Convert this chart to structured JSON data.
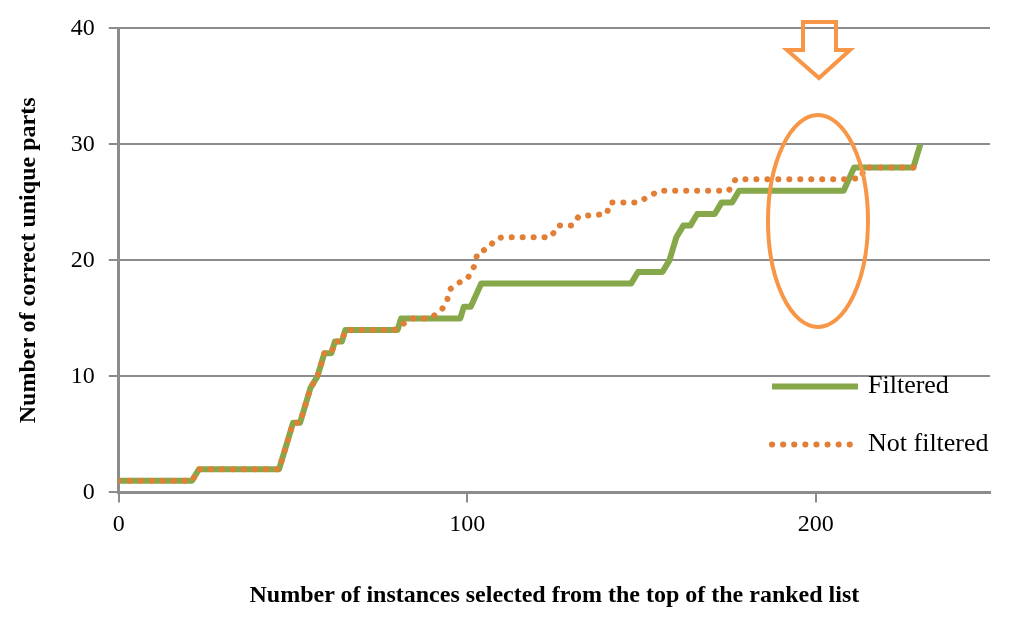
{
  "chart_data": {
    "type": "line",
    "xlabel": "Number of instances selected from the top of the ranked list",
    "ylabel": "Number of correct unique parts",
    "xlim": [
      0,
      250
    ],
    "xticks": [
      0,
      100,
      200
    ],
    "ylim": [
      0,
      40
    ],
    "yticks": [
      0,
      10,
      20,
      30,
      40
    ],
    "grid": "y",
    "legend": "bottom right",
    "marker": "none",
    "series": [
      {
        "name": "Filtered",
        "color": "#86a84a",
        "line_style": "solid",
        "x": [
          0,
          21,
          23,
          46,
          50,
          52,
          55,
          57,
          59,
          61,
          62,
          64,
          65,
          80,
          81,
          98,
          99,
          101,
          104,
          147,
          149,
          156,
          158,
          160,
          162,
          164,
          166,
          171,
          173,
          176,
          178,
          208,
          211,
          228,
          229,
          230
        ],
        "values": [
          1,
          1,
          2,
          2,
          6,
          6,
          9,
          10,
          12,
          12,
          13,
          13,
          14,
          14,
          15,
          15,
          16,
          16,
          18,
          18,
          19,
          19,
          20,
          22,
          23,
          23,
          24,
          24,
          25,
          25,
          26,
          26,
          28,
          28,
          29,
          30
        ]
      },
      {
        "name": "Not filtered",
        "color": "#e07f35",
        "line_style": "dotted",
        "x": [
          0,
          21,
          23,
          46,
          50,
          52,
          55,
          57,
          59,
          61,
          62,
          64,
          65,
          79,
          82,
          84,
          89,
          92,
          94,
          95,
          97,
          100,
          102,
          103,
          106,
          108,
          110,
          124,
          126,
          130,
          132,
          140,
          141,
          149,
          152,
          155,
          175,
          177,
          209,
          213,
          214,
          228
        ],
        "values": [
          1,
          1,
          2,
          2,
          6,
          6,
          9,
          10,
          12,
          12,
          13,
          13,
          14,
          14,
          14.6,
          15,
          15,
          15.5,
          16.3,
          17.5,
          18,
          18.4,
          19.5,
          20.7,
          21,
          21.8,
          22,
          22,
          23,
          23,
          23.8,
          24,
          25,
          25,
          25.5,
          26,
          26,
          27,
          27,
          27.1,
          28,
          28
        ]
      }
    ]
  }
}
